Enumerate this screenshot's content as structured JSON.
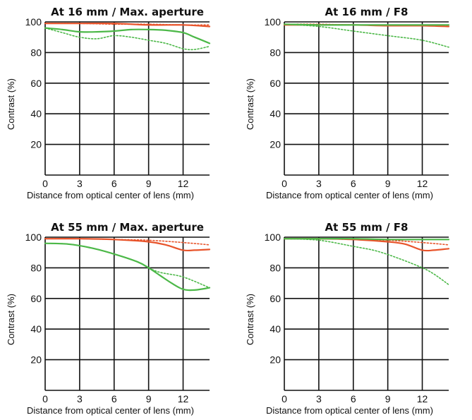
{
  "chart_data": [
    {
      "type": "line",
      "title": "At 16 mm / Max. aperture",
      "xlabel": "Distance from optical center of lens (mm)",
      "ylabel": "Contrast (%)",
      "xlim": [
        0,
        14.3
      ],
      "ylim": [
        0,
        100
      ],
      "xticks": [
        "0",
        "3",
        "6",
        "9",
        "12"
      ],
      "yticks": [
        "20",
        "40",
        "60",
        "80",
        "100"
      ],
      "grid": true,
      "series": [
        {
          "color": "#e8542b",
          "style": "solid",
          "x": [
            0,
            3,
            6,
            9,
            12,
            14.3
          ],
          "y": [
            99,
            99,
            99,
            98,
            98,
            97
          ]
        },
        {
          "color": "#e8542b",
          "style": "dotted",
          "x": [
            0,
            3,
            6,
            9,
            12,
            14.3
          ],
          "y": [
            99,
            99,
            98.5,
            98.5,
            98,
            98
          ]
        },
        {
          "color": "#4cb848",
          "style": "solid",
          "x": [
            0,
            1.5,
            3,
            4.5,
            6,
            7.5,
            9,
            10.5,
            12,
            13,
            14.3
          ],
          "y": [
            96,
            95,
            93.5,
            93.5,
            94,
            95,
            95,
            94.5,
            93,
            90,
            86
          ]
        },
        {
          "color": "#4cb848",
          "style": "dotted",
          "x": [
            0,
            1.5,
            3,
            4.5,
            6,
            7.5,
            9,
            10.5,
            12,
            13,
            14.3
          ],
          "y": [
            96,
            93,
            90,
            89,
            91,
            90,
            88,
            86,
            82.5,
            82,
            84
          ]
        }
      ]
    },
    {
      "type": "line",
      "title": "At 16 mm / F8",
      "xlabel": "Distance from optical center of lens (mm)",
      "ylabel": "Contrast (%)",
      "xlim": [
        0,
        14.3
      ],
      "ylim": [
        0,
        100
      ],
      "xticks": [
        "0",
        "3",
        "6",
        "9",
        "12"
      ],
      "yticks": [
        "20",
        "40",
        "60",
        "80",
        "100"
      ],
      "grid": true,
      "series": [
        {
          "color": "#e8542b",
          "style": "solid",
          "x": [
            0,
            3,
            6,
            9,
            12,
            14.3
          ],
          "y": [
            98,
            98,
            98,
            97.5,
            97.5,
            97
          ]
        },
        {
          "color": "#e8542b",
          "style": "dotted",
          "x": [
            0,
            3,
            6,
            9,
            12,
            14.3
          ],
          "y": [
            98.5,
            98.5,
            98,
            98,
            98,
            97.5
          ]
        },
        {
          "color": "#4cb848",
          "style": "solid",
          "x": [
            0,
            3,
            6,
            9,
            12,
            14.3
          ],
          "y": [
            98.5,
            98,
            98,
            98,
            98,
            98
          ]
        },
        {
          "color": "#4cb848",
          "style": "dotted",
          "x": [
            0,
            3,
            6,
            9,
            12,
            14.3
          ],
          "y": [
            98.5,
            97,
            94,
            91,
            88,
            83.5
          ]
        }
      ]
    },
    {
      "type": "line",
      "title": "At 55 mm / Max. aperture",
      "xlabel": "Distance from optical center of lens (mm)",
      "ylabel": "Contrast (%)",
      "xlim": [
        0,
        14.3
      ],
      "ylim": [
        0,
        100
      ],
      "xticks": [
        "0",
        "3",
        "6",
        "9",
        "12"
      ],
      "yticks": [
        "20",
        "40",
        "60",
        "80",
        "100"
      ],
      "grid": true,
      "series": [
        {
          "color": "#e8542b",
          "style": "solid",
          "x": [
            0,
            3,
            6,
            9,
            10.5,
            12,
            13,
            14.3
          ],
          "y": [
            99,
            99,
            98.5,
            97,
            95,
            91.5,
            91.5,
            92
          ]
        },
        {
          "color": "#e8542b",
          "style": "dotted",
          "x": [
            0,
            3,
            6,
            9,
            12,
            14.3
          ],
          "y": [
            99,
            99,
            98.5,
            98,
            96.5,
            95
          ]
        },
        {
          "color": "#4cb848",
          "style": "solid",
          "x": [
            0,
            2,
            4,
            6,
            8,
            9,
            10,
            11,
            12,
            13,
            14.3
          ],
          "y": [
            96,
            95.5,
            93,
            89,
            84,
            80,
            75,
            70,
            66,
            65.5,
            67
          ]
        },
        {
          "color": "#4cb848",
          "style": "dotted",
          "x": [
            0,
            2,
            4,
            6,
            8,
            9,
            10,
            12,
            14.3
          ],
          "y": [
            96,
            95.5,
            93,
            89,
            84,
            80,
            77,
            74,
            67
          ]
        }
      ]
    },
    {
      "type": "line",
      "title": "At 55 mm / F8",
      "xlabel": "Distance from optical center of lens (mm)",
      "ylabel": "Contrast (%)",
      "xlim": [
        0,
        14.3
      ],
      "ylim": [
        0,
        100
      ],
      "xticks": [
        "0",
        "3",
        "6",
        "9",
        "12"
      ],
      "yticks": [
        "20",
        "40",
        "60",
        "80",
        "100"
      ],
      "grid": true,
      "series": [
        {
          "color": "#e8542b",
          "style": "solid",
          "x": [
            0,
            3,
            6,
            9,
            10.5,
            12,
            13,
            14.3
          ],
          "y": [
            99,
            99,
            98.5,
            97,
            95.5,
            91.5,
            91.5,
            92.5
          ]
        },
        {
          "color": "#e8542b",
          "style": "dotted",
          "x": [
            0,
            3,
            6,
            9,
            12,
            14.3
          ],
          "y": [
            99,
            99,
            98.5,
            98,
            96.5,
            95
          ]
        },
        {
          "color": "#4cb848",
          "style": "solid",
          "x": [
            0,
            3,
            6,
            9,
            12,
            14.3
          ],
          "y": [
            99,
            99,
            99,
            98.5,
            98.5,
            98.5
          ]
        },
        {
          "color": "#4cb848",
          "style": "dotted",
          "x": [
            0,
            3,
            6,
            8,
            10,
            12,
            13,
            14.3
          ],
          "y": [
            99,
            98,
            94,
            91,
            86,
            80,
            76,
            69
          ]
        }
      ]
    }
  ]
}
